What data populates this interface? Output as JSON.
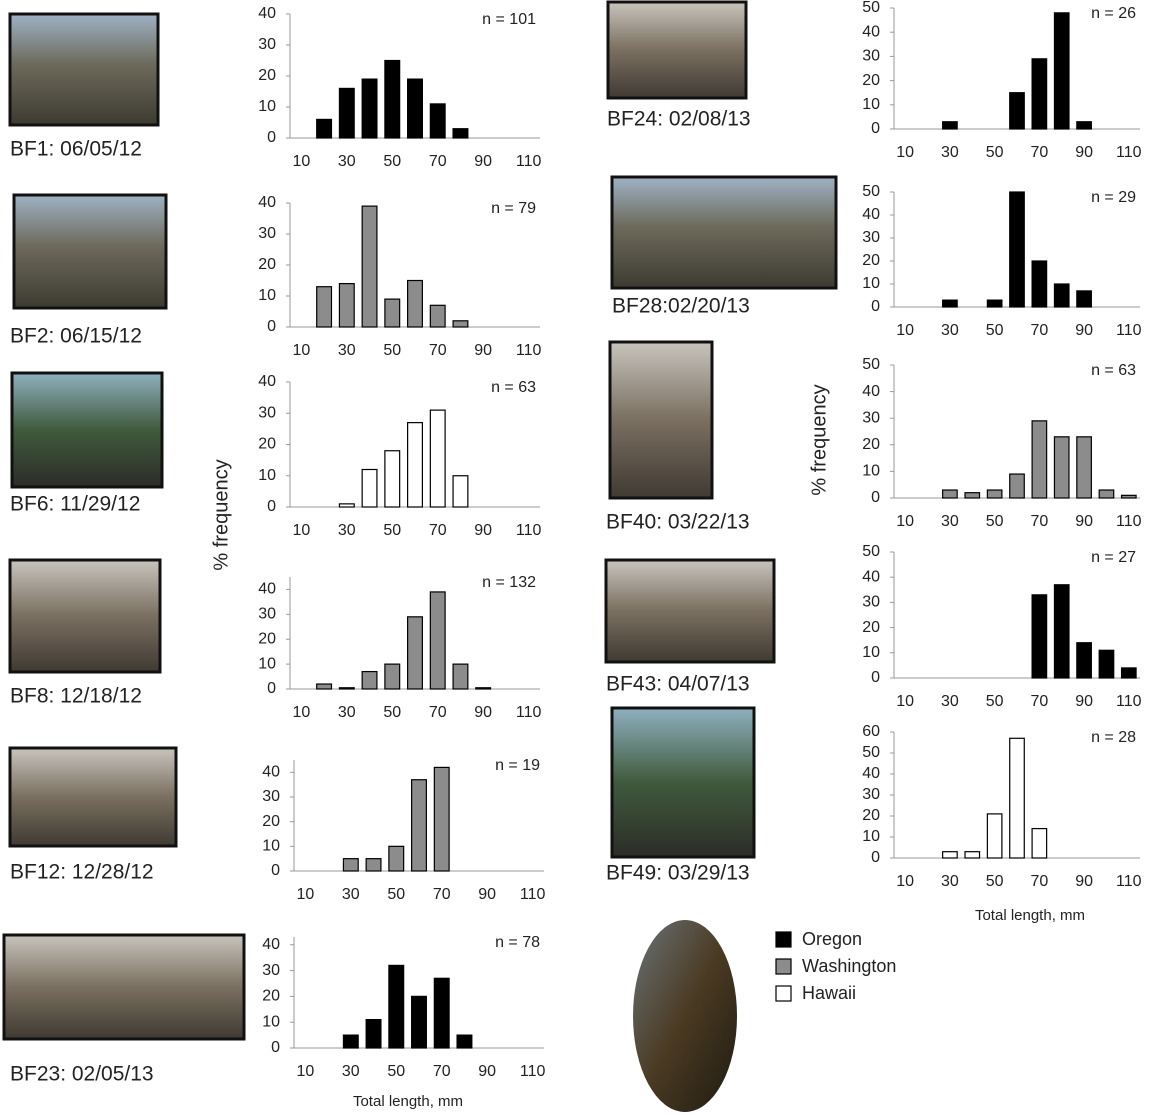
{
  "legend": [
    {
      "name": "Oregon",
      "color": "#000000"
    },
    {
      "name": "Washington",
      "color": "#8c8c8c"
    },
    {
      "name": "Hawaii",
      "color": "#ffffff"
    }
  ],
  "ylabel": "% frequency",
  "xlabel": "Total length, mm",
  "chart_data": [
    {
      "type": "bar",
      "caption": "BF1: 06/05/12",
      "n_label": "n = 101",
      "color": "#000000",
      "x": [
        20,
        30,
        40,
        50,
        60,
        70,
        80
      ],
      "values": [
        6,
        16,
        19,
        25,
        19,
        11,
        3
      ],
      "xlim": [
        5,
        115
      ],
      "xticks": [
        10,
        30,
        50,
        70,
        90,
        110
      ],
      "ylim": [
        0,
        40
      ],
      "yticks": [
        0,
        10,
        20,
        30,
        40
      ]
    },
    {
      "type": "bar",
      "caption": "BF2: 06/15/12",
      "n_label": "n = 79",
      "color": "#8c8c8c",
      "x": [
        20,
        30,
        40,
        50,
        60,
        70,
        80
      ],
      "values": [
        13,
        14,
        39,
        9,
        15,
        7,
        2
      ],
      "xlim": [
        5,
        115
      ],
      "xticks": [
        10,
        30,
        50,
        70,
        90,
        110
      ],
      "ylim": [
        0,
        40
      ],
      "yticks": [
        0,
        10,
        20,
        30,
        40
      ]
    },
    {
      "type": "bar",
      "caption": "BF6: 11/29/12",
      "n_label": "n = 63",
      "color": "#ffffff",
      "x": [
        30,
        40,
        50,
        60,
        70,
        80
      ],
      "values": [
        1,
        12,
        18,
        27,
        31,
        10
      ],
      "xlim": [
        5,
        115
      ],
      "xticks": [
        10,
        30,
        50,
        70,
        90,
        110
      ],
      "ylim": [
        0,
        40
      ],
      "yticks": [
        0,
        10,
        20,
        30,
        40
      ]
    },
    {
      "type": "bar",
      "caption": "BF8: 12/18/12",
      "n_label": "n = 132",
      "color": "#8c8c8c",
      "x": [
        20,
        30,
        40,
        50,
        60,
        70,
        80,
        90
      ],
      "values": [
        2,
        0.5,
        7,
        10,
        29,
        39,
        10,
        0.5
      ],
      "xlim": [
        5,
        115
      ],
      "xticks": [
        10,
        30,
        50,
        70,
        90,
        110
      ],
      "ylim": [
        0,
        45
      ],
      "yticks": [
        0,
        10,
        20,
        30,
        40
      ]
    },
    {
      "type": "bar",
      "caption": "BF12: 12/28/12",
      "n_label": "n = 19",
      "color": "#8c8c8c",
      "x": [
        30,
        40,
        50,
        60,
        70
      ],
      "values": [
        5,
        5,
        10,
        37,
        42
      ],
      "xlim": [
        5,
        115
      ],
      "xticks": [
        10,
        30,
        50,
        70,
        90,
        110
      ],
      "ylim": [
        0,
        45
      ],
      "yticks": [
        0,
        10,
        20,
        30,
        40
      ]
    },
    {
      "type": "bar",
      "caption": "BF23: 02/05/13",
      "n_label": "n = 78",
      "color": "#000000",
      "x": [
        30,
        40,
        50,
        60,
        70,
        80
      ],
      "values": [
        5,
        11,
        32,
        20,
        27,
        5
      ],
      "xlim": [
        5,
        115
      ],
      "xticks": [
        10,
        30,
        50,
        70,
        90,
        110
      ],
      "ylim": [
        0,
        43
      ],
      "yticks": [
        0,
        10,
        20,
        30,
        40
      ]
    },
    {
      "type": "bar",
      "caption": "BF24: 02/08/13",
      "n_label": "n = 26",
      "color": "#000000",
      "x": [
        30,
        60,
        70,
        80,
        90
      ],
      "values": [
        3,
        15,
        29,
        48,
        3
      ],
      "xlim": [
        5,
        115
      ],
      "xticks": [
        10,
        30,
        50,
        70,
        90,
        110
      ],
      "ylim": [
        0,
        50
      ],
      "yticks": [
        0,
        10,
        20,
        30,
        40,
        50
      ]
    },
    {
      "type": "bar",
      "caption": "BF28:02/20/13",
      "n_label": "n = 29",
      "color": "#000000",
      "x": [
        30,
        50,
        60,
        70,
        80,
        90
      ],
      "values": [
        3,
        3,
        50,
        20,
        10,
        7
      ],
      "xlim": [
        5,
        115
      ],
      "xticks": [
        10,
        30,
        50,
        70,
        90,
        110
      ],
      "ylim": [
        0,
        50
      ],
      "yticks": [
        0,
        10,
        20,
        30,
        40,
        50
      ]
    },
    {
      "type": "bar",
      "caption": "BF40: 03/22/13",
      "n_label": "n = 63",
      "color": "#8c8c8c",
      "x": [
        30,
        40,
        50,
        60,
        70,
        80,
        90,
        100,
        110
      ],
      "values": [
        3,
        2,
        3,
        9,
        29,
        23,
        23,
        3,
        1
      ],
      "xlim": [
        5,
        115
      ],
      "xticks": [
        10,
        30,
        50,
        70,
        90,
        110
      ],
      "ylim": [
        0,
        50
      ],
      "yticks": [
        0,
        10,
        20,
        30,
        40,
        50
      ]
    },
    {
      "type": "bar",
      "caption": "BF43: 04/07/13",
      "n_label": "n = 27",
      "color": "#000000",
      "x": [
        70,
        80,
        90,
        100,
        110
      ],
      "values": [
        33,
        37,
        14,
        11,
        4
      ],
      "xlim": [
        5,
        115
      ],
      "xticks": [
        10,
        30,
        50,
        70,
        90,
        110
      ],
      "ylim": [
        0,
        50
      ],
      "yticks": [
        0,
        10,
        20,
        30,
        40,
        50
      ]
    },
    {
      "type": "bar",
      "caption": "BF49: 03/29/13",
      "n_label": "n = 28",
      "color": "#ffffff",
      "x": [
        30,
        40,
        50,
        60,
        70
      ],
      "values": [
        3,
        3,
        21,
        57,
        14
      ],
      "xlim": [
        5,
        115
      ],
      "xticks": [
        10,
        30,
        50,
        70,
        90,
        110
      ],
      "ylim": [
        0,
        60
      ],
      "yticks": [
        0,
        10,
        20,
        30,
        40,
        50,
        60
      ]
    }
  ]
}
